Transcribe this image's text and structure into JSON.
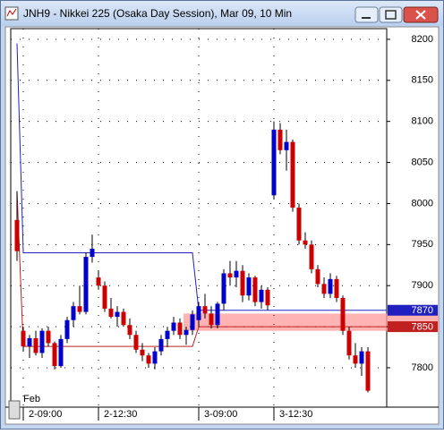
{
  "window": {
    "title": "JNH9 - Nikkei 225 (Osaka Day Session), Mar 09, 10 Min"
  },
  "chart_data": {
    "type": "candlestick",
    "categories": [
      null,
      "2-09:00",
      null,
      null,
      null,
      null,
      null,
      null,
      null,
      null,
      null,
      null,
      null,
      "2-12:30",
      null,
      null,
      null,
      null,
      null,
      null,
      null,
      null,
      null,
      null,
      null,
      null,
      null,
      null,
      null,
      "3-09:00",
      null,
      null,
      null,
      null,
      null,
      null,
      null,
      null,
      null,
      null,
      null,
      "3-12:30",
      null,
      null,
      null,
      null,
      null,
      null,
      null,
      null,
      null,
      null,
      null,
      null,
      null,
      null,
      null
    ],
    "open": [
      7980,
      7845,
      7826,
      7836,
      7818,
      7845,
      7830,
      7802,
      7835,
      7858,
      7875,
      7868,
      7935,
      7910,
      7900,
      7872,
      7862,
      7868,
      7852,
      7840,
      7822,
      7815,
      7805,
      7820,
      7835,
      7845,
      7855,
      7840,
      7846,
      7858,
      7875,
      7866,
      7852,
      7878,
      7915,
      7910,
      7918,
      7888,
      7910,
      7880,
      7895,
      8010,
      8090,
      8065,
      8075,
      7995,
      7955,
      7950,
      7920,
      7902,
      7890,
      7908,
      7885,
      7845,
      7815,
      7805,
      7820
    ],
    "high": [
      8015,
      7850,
      7840,
      7845,
      7848,
      7850,
      7832,
      7840,
      7862,
      7880,
      7900,
      7940,
      7962,
      7918,
      7905,
      7885,
      7875,
      7872,
      7860,
      7845,
      7830,
      7818,
      7825,
      7840,
      7850,
      7862,
      7860,
      7850,
      7870,
      7880,
      7890,
      7875,
      7880,
      7920,
      7930,
      7930,
      7925,
      7915,
      7912,
      7900,
      7898,
      8100,
      8098,
      8090,
      8078,
      8000,
      7965,
      7955,
      7925,
      7910,
      7915,
      7912,
      7888,
      7850,
      7830,
      7825,
      7825
    ],
    "low": [
      7930,
      7820,
      7812,
      7815,
      7812,
      7826,
      7798,
      7800,
      7830,
      7850,
      7865,
      7865,
      7928,
      7895,
      7868,
      7860,
      7850,
      7850,
      7835,
      7818,
      7808,
      7800,
      7798,
      7815,
      7825,
      7840,
      7835,
      7828,
      7840,
      7850,
      7860,
      7848,
      7848,
      7870,
      7900,
      7898,
      7880,
      7882,
      7875,
      7872,
      7870,
      8005,
      8060,
      8040,
      7990,
      7950,
      7945,
      7915,
      7898,
      7885,
      7885,
      7880,
      7840,
      7810,
      7800,
      7790,
      7770
    ],
    "close": [
      7942,
      7826,
      7836,
      7818,
      7845,
      7830,
      7802,
      7835,
      7858,
      7875,
      7868,
      7935,
      7945,
      7900,
      7872,
      7862,
      7868,
      7852,
      7840,
      7822,
      7815,
      7805,
      7820,
      7835,
      7845,
      7855,
      7840,
      7846,
      7865,
      7875,
      7866,
      7852,
      7878,
      7915,
      7910,
      7918,
      7888,
      7910,
      7880,
      7895,
      7876,
      8090,
      8065,
      8075,
      7995,
      7955,
      7950,
      7920,
      7902,
      7890,
      7908,
      7885,
      7845,
      7815,
      7805,
      7820,
      7772
    ],
    "up_color": "#0000cc",
    "down_color": "#cc0000",
    "lines": [
      {
        "color": "#2020c0",
        "values": [
          8195,
          7940,
          7940,
          7940,
          7940,
          7940,
          7940,
          7940,
          7940,
          7940,
          7940,
          7940,
          7940,
          7940,
          7940,
          7940,
          7940,
          7940,
          7940,
          7940,
          7940,
          7940,
          7940,
          7940,
          7940,
          7940,
          7940,
          7940,
          7940,
          7870,
          7870,
          7870,
          7870,
          7870,
          7870,
          7870,
          7870,
          7870,
          7870,
          7870,
          7870,
          7870,
          7870,
          7870,
          7870,
          7870,
          7870,
          7870,
          7870,
          7870,
          7870,
          7870,
          7870,
          7870,
          7870,
          7870,
          7870
        ]
      },
      {
        "color": "#c02020",
        "values": [
          8015,
          7826,
          7826,
          7826,
          7826,
          7826,
          7826,
          7826,
          7826,
          7826,
          7826,
          7826,
          7826,
          7826,
          7826,
          7826,
          7826,
          7826,
          7826,
          7826,
          7826,
          7826,
          7826,
          7826,
          7826,
          7826,
          7826,
          7826,
          7826,
          7850,
          7850,
          7850,
          7850,
          7850,
          7850,
          7850,
          7850,
          7850,
          7850,
          7850,
          7850,
          7850,
          7850,
          7850,
          7850,
          7850,
          7850,
          7850,
          7850,
          7850,
          7850,
          7850,
          7850,
          7850,
          7850,
          7850,
          7850
        ]
      }
    ],
    "band": {
      "from": 7845,
      "to": 7866,
      "start": 27,
      "color": "#ff9a9a"
    },
    "month_label": "Feb",
    "ylim": [
      7752,
      8213
    ],
    "yticks": [
      7800,
      7850,
      7900,
      7950,
      8000,
      8050,
      8100,
      8150,
      8200
    ],
    "grid": true
  }
}
